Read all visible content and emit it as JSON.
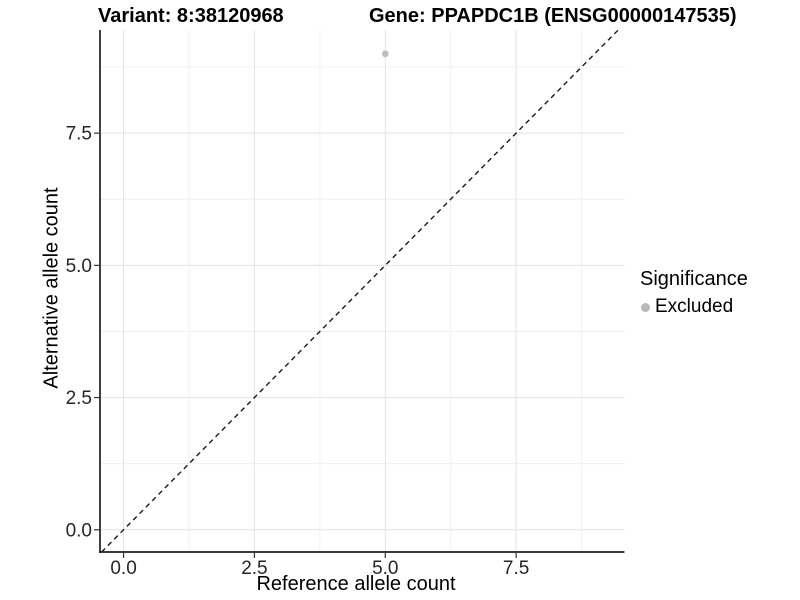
{
  "chart_data": {
    "type": "scatter",
    "title_variant": "Variant: 8:38120968",
    "title_gene": "Gene: PPAPDC1B (ENSG00000147535)",
    "xlabel": "Reference allele count",
    "ylabel": "Alternative allele count",
    "xlim": [
      -0.45,
      9.57
    ],
    "ylim": [
      -0.42,
      9.45
    ],
    "x_major_ticks": [
      0,
      2.5,
      5,
      7.5
    ],
    "x_tick_labels": [
      "0.0",
      "2.5",
      "5.0",
      "7.5"
    ],
    "y_major_ticks": [
      0,
      2.5,
      5,
      7.5
    ],
    "y_tick_labels": [
      "0.0",
      "2.5",
      "5.0",
      "7.5"
    ],
    "x_minor_ticks": [
      1.25,
      3.75,
      6.25,
      8.75
    ],
    "y_minor_ticks": [
      1.25,
      3.75,
      6.25,
      8.75
    ],
    "grid": "major-and-minor-gridlines-on-white",
    "identity_line": {
      "slope": 1,
      "intercept": 0,
      "style": "dashed",
      "color": "#1a1a1a"
    },
    "points": [
      {
        "x": 5,
        "y": 9,
        "significance": "Excluded",
        "color": "#bfbfbf",
        "radius": 3.4
      }
    ],
    "legend": {
      "title": "Significance",
      "position": "right",
      "entries": [
        {
          "label": "Excluded",
          "color": "#b8b8b8",
          "marker": "circle"
        }
      ]
    },
    "colors": {
      "background": "#ffffff",
      "grid_major": "#e3e3e3",
      "grid_minor": "#f0f0f0",
      "axis_line": "#1f1f1f",
      "tick_mark": "#333333",
      "tick_label": "#262626"
    }
  }
}
